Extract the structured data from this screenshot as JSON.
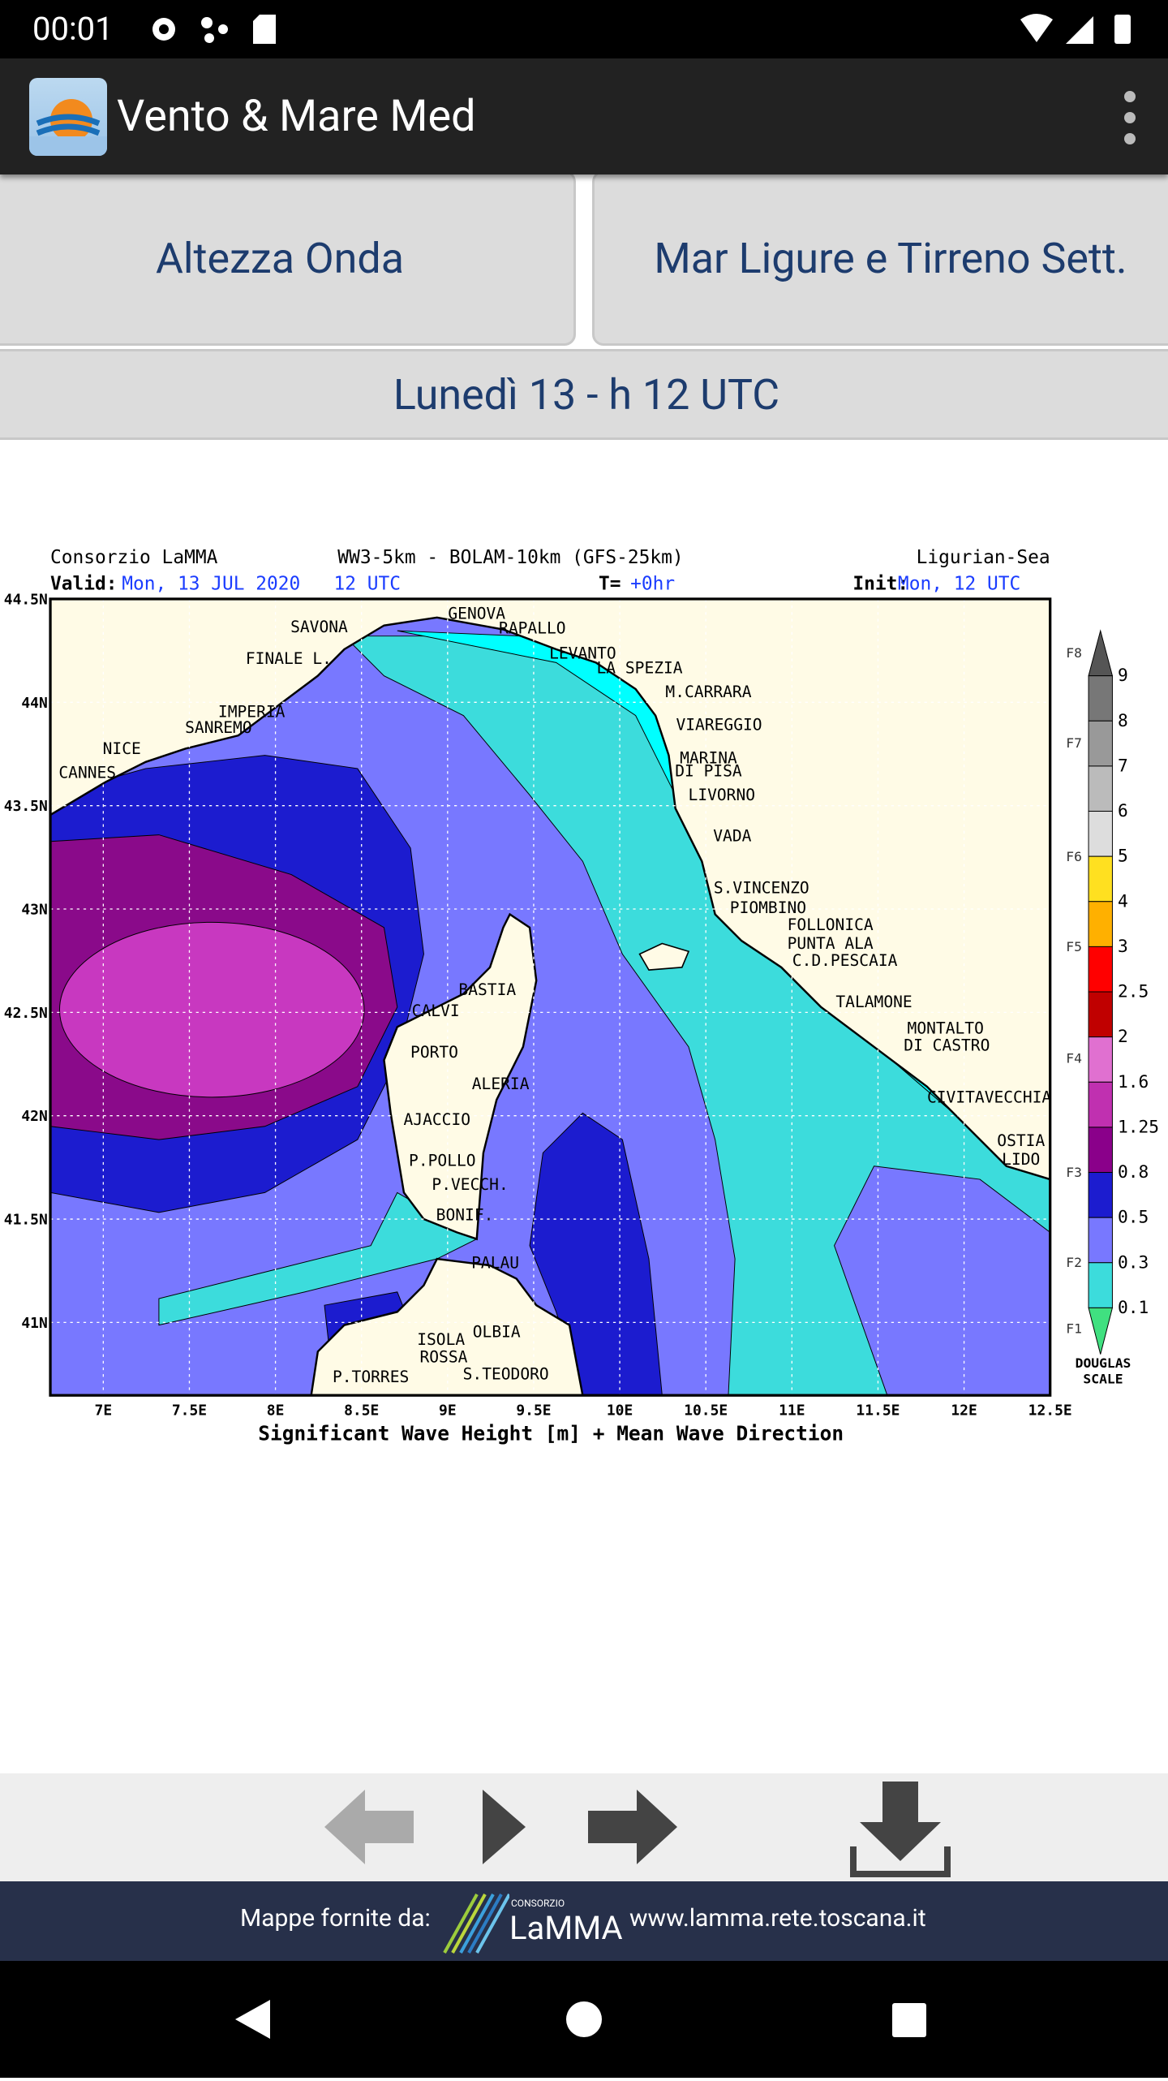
{
  "status_bar": {
    "time": "00:01"
  },
  "app_bar": {
    "title": "Vento & Mare Med"
  },
  "selectors": {
    "variable": "Altezza Onda",
    "area": "Mar Ligure e Tirreno Sett."
  },
  "date_bar": {
    "label": "Lunedì 13 - h 12 UTC"
  },
  "map": {
    "source": "Consorzio LaMMA",
    "model": "WW3-5km - BOLAM-10km (GFS-25km)",
    "region": "Ligurian-Sea",
    "valid_label": "Valid:",
    "valid_value": "Mon, 13 JUL 2020   12 UTC",
    "step_label": "T=",
    "step_value": "+0hr",
    "init_label": "Init:",
    "init_value": "Mon, 12 UTC",
    "caption": "Significant Wave Height [m] + Mean Wave Direction",
    "lon_ticks": [
      "7E",
      "7.5E",
      "8E",
      "8.5E",
      "9E",
      "9.5E",
      "10E",
      "10.5E",
      "11E",
      "11.5E",
      "12E",
      "12.5E"
    ],
    "lat_ticks": [
      "44.5N",
      "44N",
      "43.5N",
      "43N",
      "42.5N",
      "42N",
      "41.5N",
      "41N"
    ],
    "scale_values": [
      "9",
      "8",
      "7",
      "6",
      "5",
      "4",
      "3",
      "2.5",
      "2",
      "1.6",
      "1.25",
      "0.8",
      "0.5",
      "0.3",
      "0.1"
    ],
    "douglas_labels": [
      "F8",
      "F7",
      "F6",
      "F5",
      "F4",
      "F3",
      "F2",
      "F1"
    ],
    "scale_title": [
      "DOUGLAS",
      "SCALE"
    ],
    "places": [
      "SAVONA",
      "GENOVA",
      "RAPALLO",
      "FINALE L.",
      "LEVANTO",
      "LA SPEZIA",
      "M.CARRARA",
      "IMPERIA",
      "SANREMO",
      "VIAREGGIO",
      "NICE",
      "MARINA",
      "DI PISA",
      "CANNES",
      "LIVORNO",
      "VADA",
      "S.VINCENZO",
      "PIOMBINO",
      "FOLLONICA",
      "PUNTA ALA",
      "C.D.PESCAIA",
      "BASTIA",
      "TALAMONE",
      "CALVI",
      "MONTALTO",
      "DI CASTRO",
      "PORTO",
      "ALERIA",
      "CIVITAVECCHIA",
      "AJACCIO",
      "OSTIA",
      "LIDO",
      "P.POLLO",
      "P.VECCH.",
      "BONIF.",
      "PALAU",
      "OLBIA",
      "ISOLA",
      "ROSSA",
      "P.TORRES",
      "S.TEODORO"
    ]
  },
  "footer": {
    "credit": "Mappe fornite da:",
    "logo_top": "CONSORZIO",
    "logo_name": "LaMMA",
    "url": "www.lamma.rete.toscana.it"
  }
}
